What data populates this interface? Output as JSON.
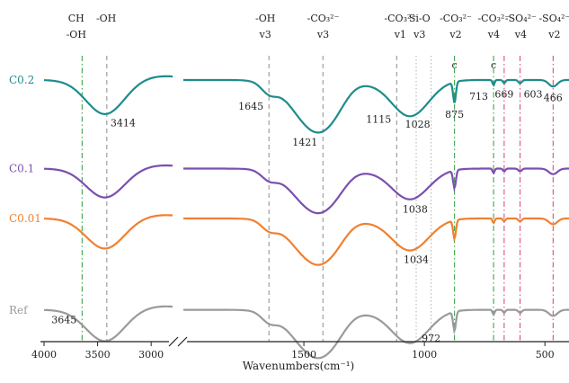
{
  "chart_data": {
    "type": "line",
    "xlabel": "Wavenumbers(cm⁻¹)",
    "ylabel": "",
    "x_axis": {
      "reversed": true,
      "segments": [
        [
          4000,
          2800
        ],
        [
          2000,
          400
        ]
      ],
      "ticks": [
        4000,
        3500,
        3000,
        1500,
        1000,
        500
      ]
    },
    "series": [
      {
        "name": "C0.2",
        "color": "#1e8c8c",
        "baseline": 0.88,
        "amp": 0.85
      },
      {
        "name": "C0.1",
        "color": "#7b4fb0",
        "baseline": 0.56,
        "amp": 0.72
      },
      {
        "name": "C0.01",
        "color": "#f08030",
        "baseline": 0.38,
        "amp": 0.75
      },
      {
        "name": "Ref",
        "color": "#9a9a9a",
        "baseline": 0.05,
        "amp": 0.78
      }
    ],
    "top_labels": [
      {
        "x": 3700,
        "lines": [
          "CH",
          "-OH"
        ]
      },
      {
        "x": 3420,
        "lines": [
          "-OH",
          ""
        ]
      },
      {
        "x": 1660,
        "lines": [
          "-OH",
          "v3"
        ]
      },
      {
        "x": 1420,
        "lines": [
          "-CO₃²⁻",
          "v3"
        ]
      },
      {
        "x": 1100,
        "lines": [
          "-CO₃²⁻",
          "v1"
        ]
      },
      {
        "x": 1020,
        "lines": [
          "Si-O",
          "v3"
        ]
      },
      {
        "x": 870,
        "lines": [
          "-CO₃²⁻",
          "v2"
        ]
      },
      {
        "x": 712,
        "lines": [
          "-CO₃²⁻",
          "v4"
        ]
      },
      {
        "x": 600,
        "lines": [
          "-SO₄²⁻",
          "v4"
        ]
      },
      {
        "x": 460,
        "lines": [
          "-SO₄²⁻",
          "v2"
        ]
      }
    ],
    "vlines": [
      {
        "x": 3645,
        "color": "#2a9a3a",
        "style": "dashdot"
      },
      {
        "x": 3414,
        "color": "#8c8c8c",
        "style": "dash"
      },
      {
        "x": 1645,
        "color": "#8c8c8c",
        "style": "dash"
      },
      {
        "x": 1421,
        "color": "#8c8c8c",
        "style": "dash"
      },
      {
        "x": 1115,
        "color": "#8c8c8c",
        "style": "dash"
      },
      {
        "x": 1034,
        "color": "#b0b0b0",
        "style": "dot"
      },
      {
        "x": 972,
        "color": "#b0b0b0",
        "style": "dot"
      },
      {
        "x": 875,
        "color": "#2a9a3a",
        "style": "dashdot"
      },
      {
        "x": 713,
        "color": "#2a9a3a",
        "style": "dashdot"
      },
      {
        "x": 669,
        "color": "#d8406a",
        "style": "dashdot"
      },
      {
        "x": 603,
        "color": "#d8406a",
        "style": "dashdot"
      },
      {
        "x": 466,
        "color": "#d8406a",
        "style": "dashdot"
      }
    ],
    "peak_labels": [
      {
        "text": "3414",
        "x": 3414,
        "series": "C0.2",
        "pos": "right"
      },
      {
        "text": "1645",
        "x": 1645,
        "series": "C0.2",
        "pos": "below-left"
      },
      {
        "text": "1421",
        "x": 1421,
        "series": "C0.2",
        "pos": "below-left"
      },
      {
        "text": "1115",
        "x": 1115,
        "series": "C0.2",
        "pos": "below-left"
      },
      {
        "text": "1028",
        "x": 1028,
        "series": "C0.2",
        "pos": "below"
      },
      {
        "text": "875",
        "x": 875,
        "series": "C0.2",
        "pos": "below"
      },
      {
        "text": "713",
        "x": 713,
        "series": "C0.2",
        "pos": "below-left"
      },
      {
        "text": "669",
        "x": 669,
        "series": "C0.2",
        "pos": "below"
      },
      {
        "text": "603",
        "x": 603,
        "series": "C0.2",
        "pos": "below-right"
      },
      {
        "text": "466",
        "x": 466,
        "series": "C0.2",
        "pos": "below"
      },
      {
        "text": "1038",
        "x": 1038,
        "series": "C0.1",
        "pos": "below"
      },
      {
        "text": "1034",
        "x": 1034,
        "series": "C0.01",
        "pos": "below"
      },
      {
        "text": "3645",
        "x": 3645,
        "series": "Ref",
        "pos": "left"
      },
      {
        "text": "972",
        "x": 972,
        "series": "Ref",
        "pos": "below"
      }
    ],
    "markers": [
      {
        "text": "c",
        "x": 875
      },
      {
        "text": "c",
        "x": 713
      }
    ]
  }
}
